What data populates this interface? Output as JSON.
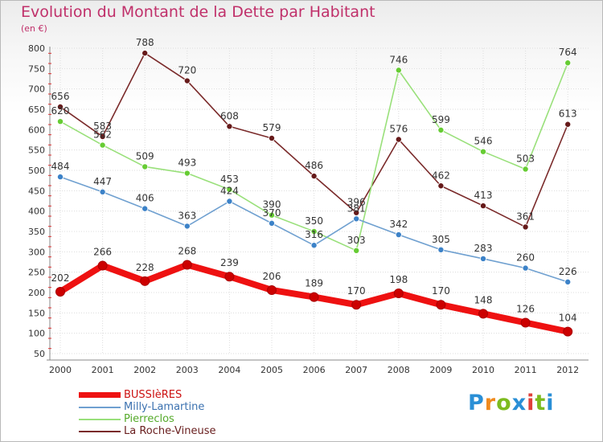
{
  "header": {
    "title": "Evolution du Montant de la Dette par Habitant",
    "subtitle": "(en €)"
  },
  "logo": {
    "text": "Proxiti",
    "colors": [
      "#2a8fd6",
      "#f08a1d",
      "#7dbb1f",
      "#2a8fd6",
      "#e0403a",
      "#7dbb1f",
      "#2a8fd6"
    ]
  },
  "chart_data": {
    "type": "line",
    "x": [
      "2000",
      "2001",
      "2002",
      "2003",
      "2004",
      "2005",
      "2006",
      "2007",
      "2008",
      "2009",
      "2010",
      "2011",
      "2012"
    ],
    "ylim": [
      50,
      800
    ],
    "yticks": [
      "50",
      "100",
      "150",
      "200",
      "250",
      "300",
      "350",
      "400",
      "450",
      "500",
      "550",
      "600",
      "650",
      "700",
      "750",
      "800"
    ],
    "grid": true,
    "legend_position": "bottom-left",
    "series": [
      {
        "name": "BUSSIèRES",
        "color": "#ee1111",
        "marker": "#cc0000",
        "values": [
          202,
          266,
          228,
          268,
          239,
          206,
          189,
          170,
          198,
          170,
          148,
          126,
          104
        ],
        "labels": [
          "202",
          "266",
          "228",
          "268",
          "239",
          "206",
          "189",
          "170",
          "198",
          "170",
          "148",
          "126",
          "104"
        ]
      },
      {
        "name": "Milly-Lamartine",
        "color": "#6fa0d0",
        "marker": "#3c82c8",
        "values": [
          484,
          447,
          406,
          363,
          424,
          370,
          316,
          381,
          342,
          305,
          283,
          260,
          226
        ],
        "labels": [
          "484",
          "447",
          "406",
          "363",
          "424",
          "370",
          "316",
          "381",
          "342",
          "305",
          "283",
          "260",
          "226"
        ]
      },
      {
        "name": "Pierreclos",
        "color": "#99e07a",
        "marker": "#66cc33",
        "values": [
          620,
          562,
          509,
          493,
          453,
          390,
          350,
          303,
          746,
          599,
          546,
          503,
          764
        ],
        "labels": [
          "620",
          "562",
          "509",
          "493",
          "453",
          "390",
          "350",
          "303",
          "746",
          "599",
          "546",
          "503",
          "764"
        ]
      },
      {
        "name": "La Roche-Vineuse",
        "color": "#7a2a2a",
        "marker": "#661a1a",
        "values": [
          656,
          583,
          788,
          720,
          608,
          579,
          486,
          396,
          576,
          462,
          413,
          361,
          613
        ],
        "labels": [
          "656",
          "583",
          "788",
          "720",
          "608",
          "579",
          "486",
          "396",
          "576",
          "462",
          "413",
          "361",
          "613"
        ]
      }
    ]
  }
}
